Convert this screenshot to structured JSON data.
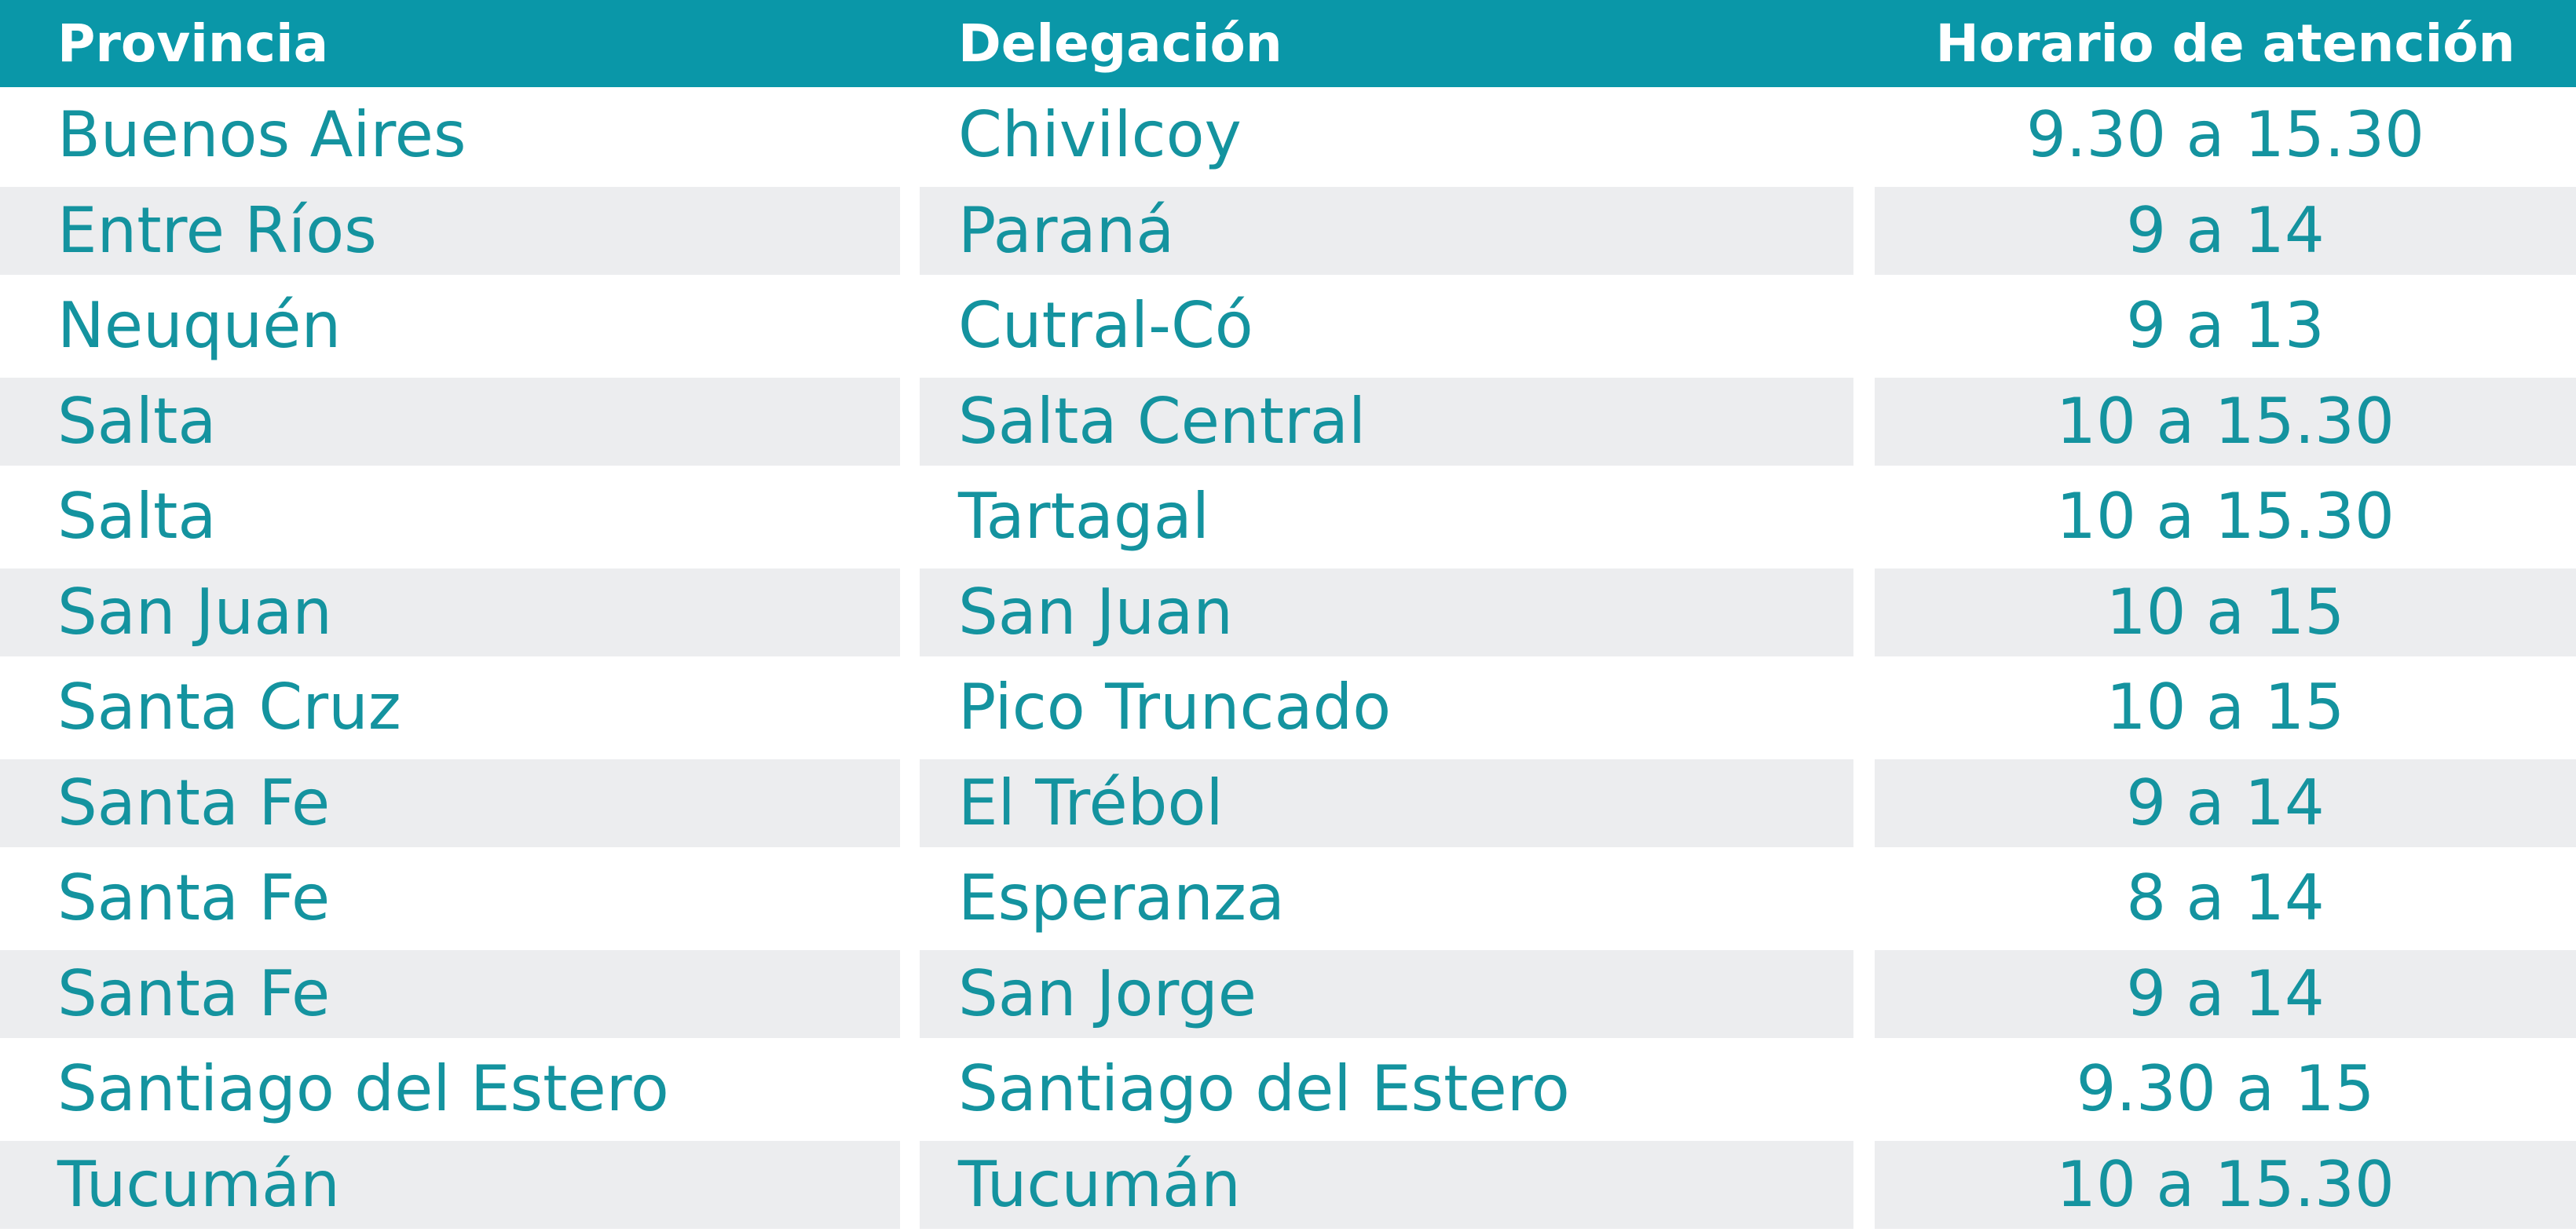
{
  "table": {
    "header": [
      "Provincia",
      "Delegación",
      "Horario de atención"
    ],
    "rows": [
      [
        "Buenos Aires",
        "Chivilcoy",
        "9.30 a 15.30"
      ],
      [
        "Entre Ríos",
        "Paraná",
        "9 a 14"
      ],
      [
        "Neuquén",
        "Cutral-Có",
        "9 a 13"
      ],
      [
        "Salta",
        "Salta Central",
        "10 a 15.30"
      ],
      [
        "Salta",
        "Tartagal",
        "10 a 15.30"
      ],
      [
        "San Juan",
        "San Juan",
        "10 a 15"
      ],
      [
        "Santa Cruz",
        "Pico Truncado",
        "10 a 15"
      ],
      [
        "Santa Fe",
        "El Trébol",
        "9 a 14"
      ],
      [
        "Santa Fe",
        "Esperanza",
        "8 a 14"
      ],
      [
        "Santa Fe",
        "San Jorge",
        "9 a 14"
      ],
      [
        "Santiago del Estero",
        "Santiago del Estero",
        "9.30 a 15"
      ],
      [
        "Tucumán",
        "Tucumán",
        "10 a 15.30"
      ]
    ]
  }
}
